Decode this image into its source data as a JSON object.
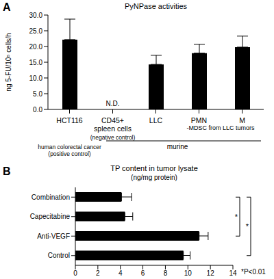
{
  "chart_data": [
    {
      "type": "bar",
      "panel_label": "A",
      "title": "PyNPase activities",
      "y_label": "ng 5-FU/10⁵ cells/h",
      "categories": [
        "HCT116",
        "CD45+ spleen cells",
        "LLC",
        "PMN",
        "M"
      ],
      "values": [
        22.2,
        null,
        14.3,
        17.9,
        19.8
      ],
      "errors": [
        6.5,
        null,
        2.9,
        2.8,
        3.5
      ],
      "value_labels": [
        null,
        "N.D.",
        null,
        null,
        null
      ],
      "category_notes": [
        [
          "human colorectal cancer",
          "(positive control)"
        ],
        [
          "(negative control)"
        ],
        null,
        null,
        null
      ],
      "groups": [
        {
          "label": "-MDSC from LLC tumors",
          "categories": [
            "PMN",
            "M"
          ]
        },
        {
          "label": "murine",
          "categories": [
            "CD45+ spleen cells",
            "LLC",
            "PMN",
            "M"
          ]
        }
      ],
      "color": "#000000",
      "ylim": [
        0,
        30
      ],
      "yticks": [
        {
          "value": 0,
          "label": "0.0"
        },
        {
          "value": 5,
          "label": "5.0"
        },
        {
          "value": 10,
          "label": "10.0"
        },
        {
          "value": 15,
          "label": "15.0"
        },
        {
          "value": 20,
          "label": "20.0"
        },
        {
          "value": 25,
          "label": "25.0"
        },
        {
          "value": 30,
          "label": "30.0"
        }
      ]
    },
    {
      "type": "bar",
      "orientation": "horizontal",
      "panel_label": "B",
      "title": "TP content in tumor lysate",
      "subtitle": "(ng/mg protein)",
      "categories": [
        "Combination",
        "Capecitabine",
        "Anti-VEGF",
        "Control"
      ],
      "values": [
        4.1,
        4.4,
        11.0,
        9.6
      ],
      "errors": [
        0.9,
        0.7,
        0.8,
        0.6
      ],
      "color": "#000000",
      "xlim": [
        0,
        14
      ],
      "xticks": [
        0,
        2,
        4,
        6,
        8,
        10,
        12,
        14
      ],
      "significance": [
        {
          "from": "Combination",
          "to": "Anti-VEGF",
          "label": "*"
        },
        {
          "from": "Combination",
          "to": "Control",
          "label": "*"
        }
      ],
      "footnote": "*P<0.01"
    }
  ]
}
